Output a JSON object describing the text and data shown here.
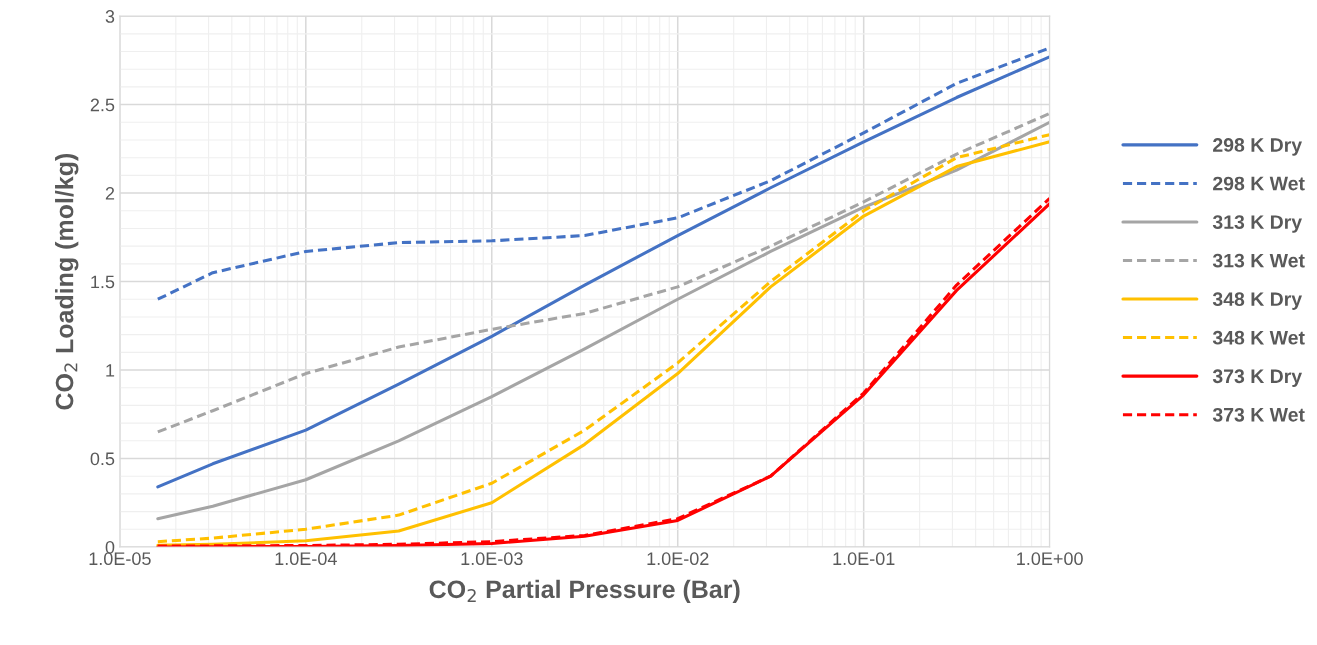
{
  "chart_data": {
    "type": "line",
    "xlabel": "CO$_{2}$ Partial Pressure (Bar)",
    "ylabel": "CO$_{2}$ Loading (mol/kg)",
    "log": "x",
    "xlim": [
      1e-05,
      1
    ],
    "xticks": [
      {
        "value": 1e-05,
        "label": "1.0E-05"
      },
      {
        "value": 0.0001,
        "label": "1.0E-04"
      },
      {
        "value": 0.001,
        "label": "1.0E-03"
      },
      {
        "value": 0.01,
        "label": "1.0E-02"
      },
      {
        "value": 0.1,
        "label": "1.0E-01"
      },
      {
        "value": 1,
        "label": "1.0E+00"
      }
    ],
    "ylim": [
      0,
      3
    ],
    "yticks": [
      0,
      0.5,
      1,
      1.5,
      2,
      2.5,
      3
    ],
    "grid": true,
    "legend": "right",
    "x": [
      1.6e-05,
      3.16e-05,
      0.0001,
      0.000316,
      0.001,
      0.00316,
      0.01,
      0.0316,
      0.1,
      0.316,
      1
    ],
    "series": [
      {
        "name": "298 K Dry",
        "color": "#4472c4",
        "line_style": "solid",
        "values": [
          0.34,
          0.47,
          0.66,
          0.92,
          1.19,
          1.48,
          1.76,
          2.03,
          2.29,
          2.54,
          2.77
        ]
      },
      {
        "name": "298 K Wet",
        "color": "#4472c4",
        "line_style": "dashed",
        "values": [
          1.4,
          1.55,
          1.67,
          1.72,
          1.73,
          1.76,
          1.86,
          2.07,
          2.34,
          2.62,
          2.82
        ]
      },
      {
        "name": "313 K Dry",
        "color": "#a5a5a5",
        "line_style": "solid",
        "values": [
          0.16,
          0.23,
          0.38,
          0.6,
          0.85,
          1.12,
          1.4,
          1.67,
          1.92,
          2.13,
          2.4
        ]
      },
      {
        "name": "313 K Wet",
        "color": "#a5a5a5",
        "line_style": "dashed",
        "values": [
          0.65,
          0.77,
          0.98,
          1.13,
          1.23,
          1.32,
          1.47,
          1.7,
          1.95,
          2.22,
          2.45
        ]
      },
      {
        "name": "348 K Dry",
        "color": "#ffc000",
        "line_style": "solid",
        "values": [
          0.01,
          0.015,
          0.035,
          0.09,
          0.25,
          0.58,
          0.98,
          1.47,
          1.87,
          2.15,
          2.29
        ]
      },
      {
        "name": "348 K Wet",
        "color": "#ffc000",
        "line_style": "dashed",
        "values": [
          0.03,
          0.05,
          0.1,
          0.18,
          0.36,
          0.66,
          1.04,
          1.5,
          1.9,
          2.2,
          2.33
        ]
      },
      {
        "name": "373 K Dry",
        "color": "#ff0000",
        "line_style": "solid",
        "values": [
          0.0,
          0.001,
          0.003,
          0.008,
          0.02,
          0.06,
          0.15,
          0.4,
          0.86,
          1.45,
          1.94
        ]
      },
      {
        "name": "373 K Wet",
        "color": "#ff0000",
        "line_style": "dashed",
        "values": [
          0.005,
          0.006,
          0.008,
          0.015,
          0.03,
          0.065,
          0.16,
          0.4,
          0.87,
          1.48,
          1.97
        ]
      }
    ]
  }
}
